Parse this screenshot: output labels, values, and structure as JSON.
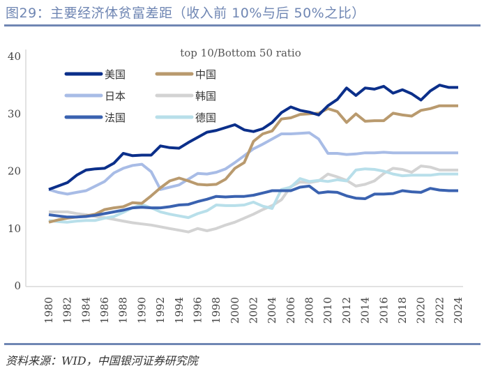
{
  "header": {
    "title": "图29：主要经济体贫富差距（收入前 10%与后 50%之比）"
  },
  "footer": {
    "source": "资料来源：WID，中国银河证券研究院"
  },
  "chart_data": {
    "type": "line",
    "title": "top 10/Bottom 50 ratio",
    "xlabel": "",
    "ylabel": "",
    "ylim": [
      0,
      40
    ],
    "yticks": [
      0,
      10,
      20,
      30,
      40
    ],
    "x": [
      1980,
      1981,
      1982,
      1983,
      1984,
      1985,
      1986,
      1987,
      1988,
      1989,
      1990,
      1991,
      1992,
      1993,
      1994,
      1995,
      1996,
      1997,
      1998,
      1999,
      2000,
      2001,
      2002,
      2003,
      2004,
      2005,
      2006,
      2007,
      2008,
      2009,
      2010,
      2011,
      2012,
      2013,
      2014,
      2015,
      2016,
      2017,
      2018,
      2019,
      2020,
      2021,
      2022,
      2023,
      2024
    ],
    "xticks": [
      "1980",
      "1982",
      "1984",
      "1986",
      "1988",
      "1990",
      "1992",
      "1994",
      "1996",
      "1998",
      "2000",
      "2002",
      "2004",
      "2006",
      "2008",
      "2010",
      "2012",
      "2014",
      "2016",
      "2018",
      "2020",
      "2022",
      "2024"
    ],
    "grid": false,
    "legend_placement": "top-left",
    "series": [
      {
        "name": "美国",
        "color": "#0b2f8a",
        "values": [
          16.8,
          17.4,
          18.0,
          19.3,
          20.2,
          20.4,
          20.5,
          21.4,
          23.1,
          22.7,
          22.8,
          22.8,
          24.4,
          24.1,
          24.0,
          25.0,
          25.9,
          26.8,
          27.1,
          27.6,
          28.1,
          27.2,
          26.9,
          27.4,
          28.5,
          30.2,
          31.2,
          30.6,
          30.3,
          29.8,
          31.4,
          32.5,
          34.5,
          33.2,
          34.5,
          34.3,
          34.8,
          33.6,
          34.2,
          33.5,
          32.4,
          34.0,
          35.0,
          34.6,
          34.6
        ]
      },
      {
        "name": "中国",
        "color": "#b99a6e",
        "values": [
          11.1,
          11.5,
          11.8,
          12.0,
          12.2,
          12.5,
          13.3,
          13.6,
          13.8,
          14.5,
          14.4,
          15.7,
          17.1,
          18.3,
          18.8,
          18.3,
          17.7,
          17.6,
          17.7,
          18.6,
          20.5,
          21.5,
          25.2,
          26.5,
          27.0,
          29.1,
          29.3,
          29.9,
          30.0,
          30.1,
          30.9,
          30.4,
          28.5,
          30.0,
          28.7,
          28.8,
          28.8,
          30.1,
          29.8,
          29.6,
          30.6,
          30.9,
          31.4,
          31.4,
          31.4
        ]
      },
      {
        "name": "日本",
        "color": "#a8bce6",
        "values": [
          16.8,
          16.3,
          16.0,
          16.3,
          16.6,
          17.4,
          18.2,
          19.7,
          20.5,
          21.0,
          21.2,
          19.9,
          16.8,
          17.2,
          17.6,
          18.6,
          19.6,
          19.5,
          19.8,
          20.4,
          21.5,
          22.7,
          23.9,
          24.7,
          25.6,
          26.5,
          26.5,
          26.6,
          26.7,
          25.6,
          23.1,
          23.1,
          22.9,
          23.0,
          23.2,
          23.2,
          23.3,
          23.2,
          23.2,
          23.2,
          23.2,
          23.2,
          23.2,
          23.2,
          23.2
        ]
      },
      {
        "name": "韩国",
        "color": "#d3d3d3",
        "values": [
          12.9,
          12.9,
          12.9,
          12.6,
          12.4,
          12.1,
          11.9,
          11.6,
          11.3,
          11.0,
          10.8,
          10.6,
          10.3,
          10.0,
          9.7,
          9.4,
          10.0,
          9.6,
          10.0,
          10.6,
          11.1,
          11.8,
          12.5,
          13.3,
          14.0,
          15.0,
          17.3,
          18.1,
          18.0,
          18.3,
          19.5,
          19.0,
          18.4,
          17.4,
          17.7,
          18.3,
          19.6,
          20.5,
          20.3,
          19.8,
          20.9,
          20.7,
          20.2,
          20.2,
          20.2
        ]
      },
      {
        "name": "法国",
        "color": "#3a62b0",
        "values": [
          12.4,
          12.2,
          12.0,
          12.0,
          12.1,
          12.3,
          12.6,
          12.9,
          13.2,
          13.6,
          13.7,
          13.6,
          13.6,
          13.8,
          14.1,
          14.2,
          14.7,
          15.1,
          15.6,
          15.5,
          15.6,
          15.6,
          15.8,
          16.2,
          16.6,
          16.6,
          16.6,
          17.2,
          17.4,
          16.2,
          16.4,
          16.3,
          15.7,
          15.3,
          15.2,
          16.0,
          16.0,
          16.1,
          16.6,
          16.4,
          16.3,
          17.0,
          16.7,
          16.6,
          16.6
        ]
      },
      {
        "name": "德国",
        "color": "#b8dfea",
        "values": [
          11.4,
          11.2,
          11.1,
          11.3,
          11.4,
          11.4,
          11.8,
          12.1,
          12.8,
          13.6,
          14.2,
          13.6,
          12.9,
          12.5,
          12.2,
          11.9,
          12.6,
          13.1,
          14.1,
          14.0,
          14.0,
          14.1,
          14.6,
          13.9,
          13.5,
          16.8,
          17.2,
          18.7,
          18.2,
          18.4,
          18.2,
          18.5,
          18.3,
          20.2,
          20.4,
          20.3,
          20.0,
          19.5,
          19.2,
          19.3,
          19.3,
          19.3,
          19.5,
          19.5,
          19.5
        ]
      }
    ]
  }
}
